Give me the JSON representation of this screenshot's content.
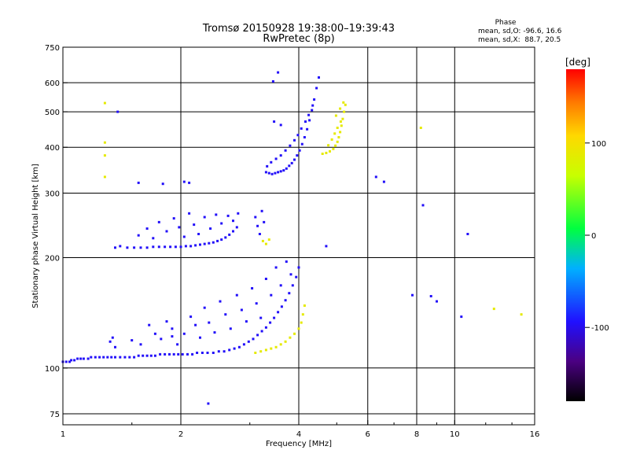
{
  "chart_data": {
    "type": "scatter",
    "title": "Tromsø 20150928 19:38:00–19:39:43",
    "subtitle": "RwPretec (8p)",
    "xlabel": "Frequency [MHz]",
    "ylabel": "Stationary phase Virtual Height [km]",
    "x_scale": "log",
    "y_scale": "log",
    "xlim": [
      1,
      16
    ],
    "ylim": [
      70,
      750
    ],
    "x_ticks": [
      1,
      2,
      4,
      6,
      8,
      10,
      16
    ],
    "y_ticks": [
      75,
      100,
      200,
      300,
      400,
      500,
      600,
      750
    ],
    "grid": true,
    "phase_box": {
      "heading": "Phase",
      "line1": "mean, sd,O: -96.6, 16.6",
      "line2": "mean, sd,X:  88.7, 20.5"
    },
    "colorbar": {
      "label": "[deg]",
      "ticks": [
        100,
        0,
        -100
      ],
      "range": [
        -180,
        180
      ]
    },
    "series": [
      {
        "points": [
          [
            1.0,
            104,
            -96
          ],
          [
            1.02,
            104,
            -96
          ],
          [
            1.04,
            104,
            -96
          ],
          [
            1.05,
            105,
            -96
          ],
          [
            1.07,
            105,
            -96
          ],
          [
            1.09,
            106,
            -96
          ],
          [
            1.11,
            106,
            -96
          ],
          [
            1.13,
            106,
            -96
          ],
          [
            1.16,
            106,
            -96
          ],
          [
            1.18,
            107,
            -96
          ],
          [
            1.21,
            107,
            -96
          ],
          [
            1.24,
            107,
            -96
          ],
          [
            1.27,
            107,
            -96
          ],
          [
            1.3,
            107,
            -96
          ],
          [
            1.33,
            107,
            -96
          ],
          [
            1.36,
            107,
            -96
          ],
          [
            1.4,
            107,
            -96
          ],
          [
            1.44,
            107,
            -96
          ],
          [
            1.48,
            107,
            -96
          ],
          [
            1.52,
            107,
            -96
          ],
          [
            1.56,
            108,
            -96
          ],
          [
            1.6,
            108,
            -96
          ],
          [
            1.64,
            108,
            -96
          ],
          [
            1.68,
            108,
            -96
          ],
          [
            1.72,
            108,
            -96
          ],
          [
            1.77,
            109,
            -96
          ],
          [
            1.82,
            109,
            -96
          ],
          [
            1.87,
            109,
            -96
          ],
          [
            1.92,
            109,
            -96
          ],
          [
            1.97,
            109,
            -96
          ],
          [
            2.02,
            109,
            -96
          ],
          [
            2.08,
            109,
            -96
          ],
          [
            2.14,
            109,
            -96
          ],
          [
            2.2,
            110,
            -96
          ],
          [
            2.27,
            110,
            -96
          ],
          [
            2.34,
            110,
            -96
          ],
          [
            2.42,
            110,
            -96
          ],
          [
            2.5,
            111,
            -96
          ],
          [
            2.58,
            111,
            -96
          ],
          [
            2.66,
            112,
            -96
          ],
          [
            2.74,
            113,
            -96
          ],
          [
            2.82,
            114,
            -96
          ],
          [
            2.9,
            116,
            -96
          ],
          [
            2.98,
            118,
            -96
          ],
          [
            3.06,
            120,
            -96
          ],
          [
            3.14,
            123,
            -96
          ],
          [
            3.22,
            126,
            -96
          ],
          [
            3.3,
            129,
            -96
          ],
          [
            3.38,
            133,
            -96
          ],
          [
            3.46,
            137,
            -96
          ],
          [
            3.54,
            142,
            -96
          ],
          [
            3.62,
            147,
            -96
          ],
          [
            3.7,
            153,
            -96
          ],
          [
            3.78,
            160,
            -96
          ],
          [
            3.86,
            168,
            -96
          ],
          [
            3.94,
            177,
            -96
          ],
          [
            4.0,
            188,
            -96
          ],
          [
            1.32,
            118,
            -96
          ],
          [
            1.34,
            121,
            -96
          ],
          [
            1.36,
            114,
            -96
          ],
          [
            1.5,
            119,
            -96
          ],
          [
            1.58,
            116,
            -96
          ],
          [
            1.66,
            131,
            -96
          ],
          [
            1.72,
            124,
            -96
          ],
          [
            1.78,
            120,
            -96
          ],
          [
            1.84,
            134,
            -96
          ],
          [
            1.9,
            128,
            -96
          ],
          [
            1.96,
            116,
            -96
          ],
          [
            2.04,
            124,
            -96
          ],
          [
            2.12,
            138,
            -96
          ],
          [
            2.18,
            131,
            -96
          ],
          [
            2.24,
            121,
            -96
          ],
          [
            2.3,
            146,
            -96
          ],
          [
            2.36,
            133,
            -96
          ],
          [
            2.44,
            125,
            -96
          ],
          [
            2.52,
            152,
            -96
          ],
          [
            2.6,
            140,
            -96
          ],
          [
            2.68,
            128,
            -96
          ],
          [
            2.78,
            158,
            -96
          ],
          [
            2.86,
            144,
            -96
          ],
          [
            2.94,
            134,
            -96
          ],
          [
            3.04,
            165,
            -96
          ],
          [
            3.12,
            150,
            -96
          ],
          [
            3.2,
            137,
            -96
          ],
          [
            3.3,
            175,
            -96
          ],
          [
            3.4,
            158,
            -96
          ],
          [
            3.5,
            188,
            -96
          ],
          [
            3.6,
            168,
            -96
          ],
          [
            3.72,
            195,
            -96
          ],
          [
            3.82,
            180,
            -96
          ],
          [
            1.36,
            213,
            -96
          ],
          [
            1.4,
            215,
            -96
          ],
          [
            1.46,
            213,
            -96
          ],
          [
            1.52,
            213,
            -96
          ],
          [
            1.58,
            213,
            -96
          ],
          [
            1.64,
            213,
            -96
          ],
          [
            1.7,
            214,
            -96
          ],
          [
            1.76,
            214,
            -96
          ],
          [
            1.82,
            214,
            -96
          ],
          [
            1.88,
            214,
            -96
          ],
          [
            1.94,
            214,
            -96
          ],
          [
            2.0,
            214,
            -96
          ],
          [
            2.06,
            215,
            -96
          ],
          [
            2.12,
            215,
            -96
          ],
          [
            2.18,
            216,
            -96
          ],
          [
            2.24,
            217,
            -96
          ],
          [
            2.3,
            218,
            -96
          ],
          [
            2.36,
            219,
            -96
          ],
          [
            2.42,
            220,
            -96
          ],
          [
            2.48,
            222,
            -96
          ],
          [
            2.54,
            224,
            -96
          ],
          [
            2.6,
            227,
            -96
          ],
          [
            2.66,
            231,
            -96
          ],
          [
            2.72,
            236,
            -96
          ],
          [
            2.78,
            242,
            -96
          ],
          [
            1.56,
            230,
            -96
          ],
          [
            1.64,
            240,
            -96
          ],
          [
            1.7,
            226,
            -96
          ],
          [
            1.76,
            250,
            -96
          ],
          [
            1.84,
            236,
            -96
          ],
          [
            1.92,
            256,
            -96
          ],
          [
            1.98,
            242,
            -96
          ],
          [
            2.04,
            228,
            -96
          ],
          [
            2.1,
            264,
            -96
          ],
          [
            2.16,
            246,
            -96
          ],
          [
            2.22,
            232,
            -96
          ],
          [
            2.3,
            258,
            -96
          ],
          [
            2.38,
            240,
            -96
          ],
          [
            2.46,
            262,
            -96
          ],
          [
            2.54,
            248,
            -96
          ],
          [
            2.64,
            260,
            -96
          ],
          [
            2.72,
            252,
            -96
          ],
          [
            2.8,
            264,
            -96
          ],
          [
            2.04,
            322,
            -96
          ],
          [
            2.1,
            320,
            -96
          ],
          [
            1.8,
            318,
            -96
          ],
          [
            3.1,
            258,
            -96
          ],
          [
            3.14,
            244,
            -96
          ],
          [
            3.18,
            232,
            -96
          ],
          [
            3.22,
            268,
            -96
          ],
          [
            3.26,
            250,
            -96
          ],
          [
            3.3,
            342,
            -96
          ],
          [
            3.36,
            340,
            -96
          ],
          [
            3.42,
            338,
            -96
          ],
          [
            3.48,
            340,
            -96
          ],
          [
            3.54,
            342,
            -96
          ],
          [
            3.6,
            344,
            -96
          ],
          [
            3.66,
            346,
            -96
          ],
          [
            3.72,
            350,
            -96
          ],
          [
            3.78,
            356,
            -96
          ],
          [
            3.84,
            362,
            -96
          ],
          [
            3.9,
            370,
            -96
          ],
          [
            3.96,
            380,
            -96
          ],
          [
            4.02,
            392,
            -96
          ],
          [
            4.08,
            408,
            -96
          ],
          [
            4.14,
            426,
            -96
          ],
          [
            4.2,
            448,
            -96
          ],
          [
            4.26,
            474,
            -96
          ],
          [
            4.32,
            505,
            -96
          ],
          [
            4.38,
            540,
            -96
          ],
          [
            4.44,
            580,
            -96
          ],
          [
            4.5,
            620,
            -96
          ],
          [
            3.32,
            355,
            -96
          ],
          [
            3.4,
            364,
            -96
          ],
          [
            3.5,
            372,
            -96
          ],
          [
            3.6,
            380,
            -96
          ],
          [
            3.7,
            392,
            -96
          ],
          [
            3.8,
            404,
            -96
          ],
          [
            3.9,
            418,
            -96
          ],
          [
            3.98,
            432,
            -96
          ],
          [
            4.06,
            450,
            -96
          ],
          [
            4.16,
            470,
            -96
          ],
          [
            4.24,
            490,
            -96
          ],
          [
            4.34,
            520,
            -96
          ],
          [
            3.46,
            470,
            -96
          ],
          [
            3.6,
            460,
            -96
          ],
          [
            3.54,
            640,
            -96
          ],
          [
            3.44,
            605,
            -96
          ],
          [
            1.56,
            320,
            -96
          ],
          [
            1.38,
            500,
            -96
          ],
          [
            10.8,
            232,
            -96
          ],
          [
            6.3,
            332,
            -96
          ],
          [
            6.6,
            322,
            -96
          ],
          [
            8.3,
            278,
            -96
          ],
          [
            4.7,
            215,
            -96
          ],
          [
            7.8,
            158,
            -96
          ],
          [
            8.7,
            157,
            -96
          ],
          [
            9.0,
            152,
            -96
          ],
          [
            10.4,
            138,
            -96
          ],
          [
            1.9,
            122,
            -96
          ],
          [
            2.35,
            80,
            -96
          ]
        ]
      },
      {
        "points": [
          [
            3.1,
            110,
            88
          ],
          [
            3.2,
            111,
            88
          ],
          [
            3.3,
            112,
            88
          ],
          [
            3.4,
            113,
            88
          ],
          [
            3.5,
            114,
            88
          ],
          [
            3.6,
            116,
            88
          ],
          [
            3.7,
            118,
            88
          ],
          [
            3.8,
            121,
            88
          ],
          [
            3.9,
            124,
            88
          ],
          [
            4.0,
            128,
            88
          ],
          [
            4.06,
            133,
            88
          ],
          [
            4.1,
            140,
            88
          ],
          [
            4.14,
            148,
            88
          ],
          [
            3.24,
            222,
            88
          ],
          [
            3.3,
            218,
            88
          ],
          [
            3.36,
            224,
            88
          ],
          [
            4.6,
            384,
            88
          ],
          [
            4.7,
            386,
            88
          ],
          [
            4.8,
            390,
            88
          ],
          [
            4.9,
            396,
            88
          ],
          [
            4.96,
            404,
            88
          ],
          [
            5.02,
            414,
            88
          ],
          [
            5.06,
            426,
            88
          ],
          [
            5.1,
            440,
            88
          ],
          [
            5.14,
            458,
            88
          ],
          [
            5.18,
            478,
            88
          ],
          [
            5.22,
            500,
            88
          ],
          [
            5.26,
            522,
            88
          ],
          [
            4.76,
            405,
            88
          ],
          [
            4.86,
            420,
            88
          ],
          [
            4.94,
            436,
            88
          ],
          [
            5.02,
            452,
            88
          ],
          [
            5.12,
            470,
            88
          ],
          [
            4.98,
            488,
            88
          ],
          [
            5.1,
            510,
            88
          ],
          [
            5.2,
            530,
            88
          ],
          [
            1.28,
            528,
            88
          ],
          [
            1.28,
            412,
            88
          ],
          [
            1.28,
            332,
            88
          ],
          [
            1.28,
            380,
            88
          ],
          [
            8.2,
            452,
            88
          ],
          [
            12.6,
            145,
            88
          ],
          [
            14.8,
            140,
            88
          ]
        ]
      }
    ]
  }
}
